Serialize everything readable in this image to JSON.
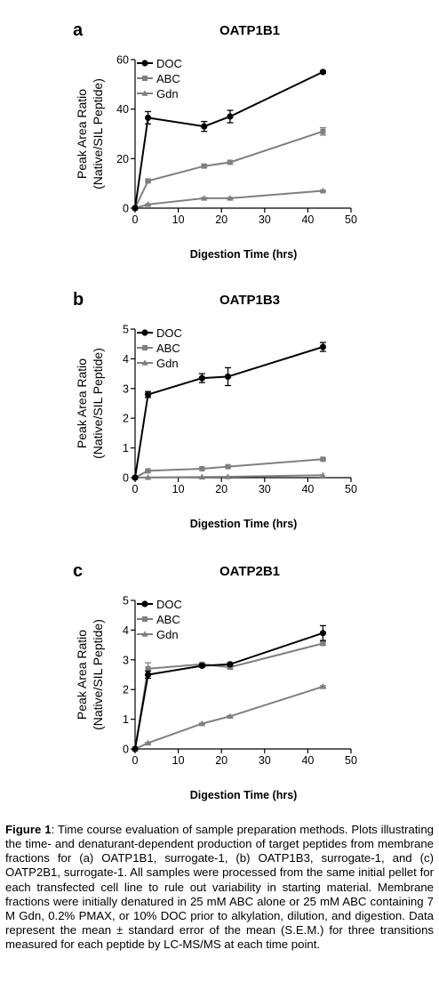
{
  "chart_data": [
    {
      "type": "line",
      "panel_letter": "a",
      "title": "OATP1B1",
      "xlabel": "Digestion Time (hrs)",
      "ylabel": [
        "Peak Area Ratio",
        "(Native/SIL Peptide)"
      ],
      "xlim": [
        0,
        50
      ],
      "ylim": [
        0,
        60
      ],
      "xticks": [
        0,
        10,
        20,
        30,
        40,
        50
      ],
      "yticks": [
        0,
        20,
        40,
        60
      ],
      "legend_position": "top-left",
      "series": [
        {
          "name": "DOC",
          "marker": "circle",
          "color": "#000000",
          "x": [
            0,
            3,
            16,
            22,
            43.5
          ],
          "y": [
            0,
            36.5,
            33,
            37,
            55
          ],
          "err": [
            0,
            2.5,
            2,
            2.5,
            0.5
          ]
        },
        {
          "name": "ABC",
          "marker": "square",
          "color": "#7f7f7f",
          "x": [
            0,
            3,
            16,
            22,
            43.5
          ],
          "y": [
            0,
            11,
            17,
            18.5,
            31
          ],
          "err": [
            0,
            0.5,
            0.5,
            0.5,
            1.5
          ]
        },
        {
          "name": "Gdn",
          "marker": "triangle",
          "color": "#7f7f7f",
          "x": [
            0,
            3,
            16,
            22,
            43.5
          ],
          "y": [
            0,
            1.5,
            4,
            4,
            7
          ],
          "err": [
            0,
            0.2,
            0.3,
            0.3,
            0.3
          ]
        }
      ]
    },
    {
      "type": "line",
      "panel_letter": "b",
      "title": "OATP1B3",
      "xlabel": "Digestion Time (hrs)",
      "ylabel": [
        "Peak Area Ratio",
        "(Native/SIL Peptide)"
      ],
      "xlim": [
        0,
        50
      ],
      "ylim": [
        0,
        5
      ],
      "xticks": [
        0,
        10,
        20,
        30,
        40,
        50
      ],
      "yticks": [
        0,
        1,
        2,
        3,
        4,
        5
      ],
      "legend_position": "top-left",
      "series": [
        {
          "name": "DOC",
          "marker": "circle",
          "color": "#000000",
          "x": [
            0,
            3,
            15.5,
            21.5,
            43.5
          ],
          "y": [
            0,
            2.8,
            3.35,
            3.4,
            4.4
          ],
          "err": [
            0,
            0.1,
            0.15,
            0.3,
            0.15
          ]
        },
        {
          "name": "ABC",
          "marker": "square",
          "color": "#7f7f7f",
          "x": [
            0,
            3,
            15.5,
            21.5,
            43.5
          ],
          "y": [
            0,
            0.23,
            0.3,
            0.37,
            0.62
          ],
          "err": [
            0,
            0.02,
            0.02,
            0.02,
            0.03
          ]
        },
        {
          "name": "Gdn",
          "marker": "triangle",
          "color": "#7f7f7f",
          "x": [
            0,
            3,
            15.5,
            21.5,
            43.5
          ],
          "y": [
            0,
            0.01,
            0.02,
            0.03,
            0.08
          ],
          "err": [
            0,
            0,
            0,
            0,
            0
          ]
        }
      ]
    },
    {
      "type": "line",
      "panel_letter": "c",
      "title": "OATP2B1",
      "xlabel": "Digestion Time (hrs)",
      "ylabel": [
        "Peak Area Ratio",
        "(Native/SIL Peptide)"
      ],
      "xlim": [
        0,
        50
      ],
      "ylim": [
        0,
        5
      ],
      "xticks": [
        0,
        10,
        20,
        30,
        40,
        50
      ],
      "yticks": [
        0,
        1,
        2,
        3,
        4,
        5
      ],
      "legend_position": "top-left",
      "series": [
        {
          "name": "DOC",
          "marker": "circle",
          "color": "#000000",
          "x": [
            0,
            3,
            15.5,
            22,
            43.5
          ],
          "y": [
            0,
            2.5,
            2.8,
            2.85,
            3.9
          ],
          "err": [
            0,
            0.12,
            0.05,
            0.05,
            0.25
          ]
        },
        {
          "name": "ABC",
          "marker": "square",
          "color": "#7f7f7f",
          "x": [
            0,
            3,
            15.5,
            22,
            43.5
          ],
          "y": [
            0,
            2.7,
            2.85,
            2.75,
            3.55
          ],
          "err": [
            0,
            0.2,
            0.05,
            0.05,
            0.05
          ]
        },
        {
          "name": "Gdn",
          "marker": "triangle",
          "color": "#7f7f7f",
          "x": [
            0,
            3,
            15.5,
            22,
            43.5
          ],
          "y": [
            0,
            0.2,
            0.85,
            1.1,
            2.1
          ],
          "err": [
            0,
            0.02,
            0.02,
            0.02,
            0.03
          ]
        }
      ]
    }
  ],
  "caption": {
    "label": "Figure 1",
    "text": ": Time course evaluation of sample preparation methods. Plots illustrating the time- and denaturant-dependent production of target peptides from membrane fractions for (a) OATP1B1, surrogate-1, (b) OATP1B3, surrogate-1, and (c) OATP2B1, surrogate-1. All samples were processed from the same initial pellet for each transfected cell line to rule out variability in starting material. Membrane fractions were initially denatured in 25 mM ABC alone or 25 mM ABC containing 7 M Gdn, 0.2% PMAX, or 10% DOC prior to alkylation, dilution, and digestion. Data represent the mean ± standard error of the mean (S.E.M.) for three transitions measured for each peptide by LC-MS/MS at each time point."
  }
}
